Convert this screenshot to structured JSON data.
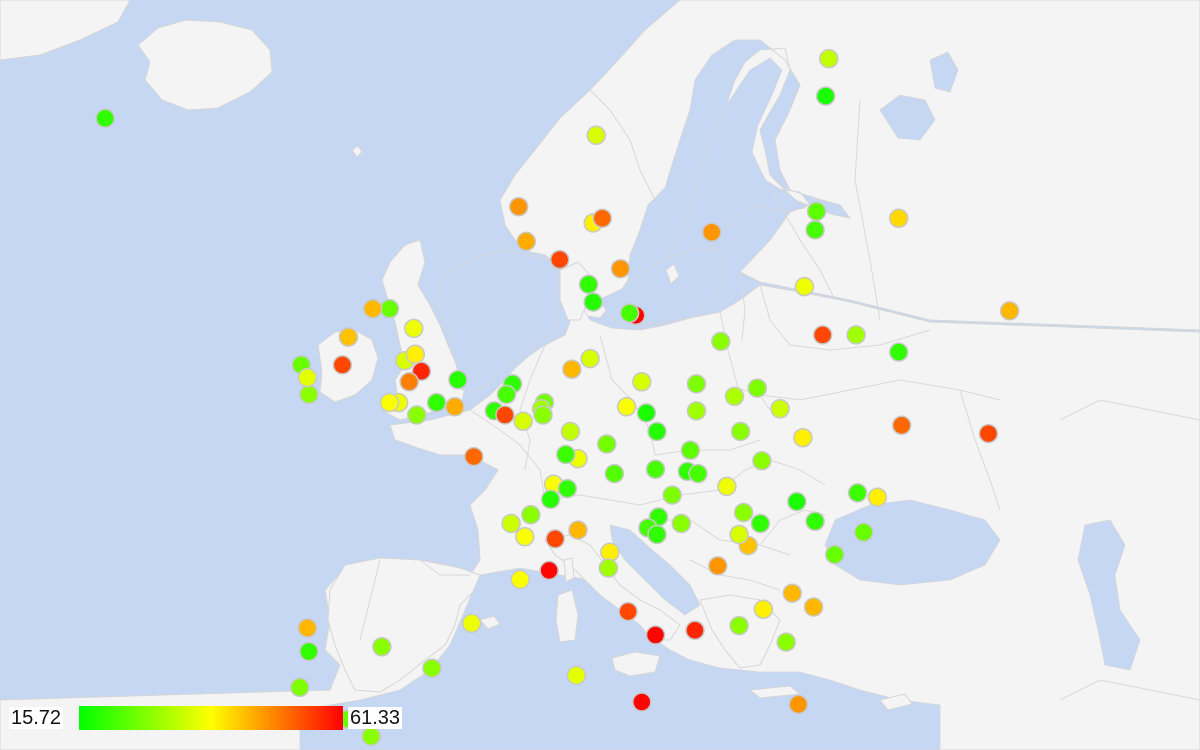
{
  "legend": {
    "min_label": "15.72",
    "max_label": "61.33",
    "min_value": 15.72,
    "max_value": 61.33,
    "colors": [
      "#00ff00",
      "#ffff00",
      "#ff0000"
    ]
  },
  "colors": {
    "water": "#c5d7f2",
    "land": "#f4f4f4",
    "border": "#d6d6d6"
  },
  "chart_data": {
    "type": "scatter",
    "color_scale": {
      "min": 15.72,
      "max": 61.33,
      "colors": [
        "#00ff00",
        "#ffff00",
        "#ff0000"
      ]
    },
    "points": [
      {
        "lon": -21.9,
        "lat": 64.1,
        "value": 20
      },
      {
        "lon": 25.7,
        "lat": 66.5,
        "value": 33
      },
      {
        "lon": 10.4,
        "lat": 63.4,
        "value": 35
      },
      {
        "lon": 5.3,
        "lat": 60.4,
        "value": 48
      },
      {
        "lon": 10.2,
        "lat": 59.7,
        "value": 40
      },
      {
        "lon": 10.8,
        "lat": 59.9,
        "value": 52
      },
      {
        "lon": 5.8,
        "lat": 58.9,
        "value": 46
      },
      {
        "lon": 8.0,
        "lat": 58.1,
        "value": 55
      },
      {
        "lon": 18.0,
        "lat": 59.3,
        "value": 48
      },
      {
        "lon": 12.0,
        "lat": 57.7,
        "value": 48
      },
      {
        "lon": 13.0,
        "lat": 55.6,
        "value": 61
      },
      {
        "lon": 12.6,
        "lat": 55.7,
        "value": 22
      },
      {
        "lon": 10.2,
        "lat": 56.2,
        "value": 19
      },
      {
        "lon": 9.9,
        "lat": 57.0,
        "value": 20
      },
      {
        "lon": 25.5,
        "lat": 65.0,
        "value": 18
      },
      {
        "lon": 24.9,
        "lat": 60.2,
        "value": 24
      },
      {
        "lon": 24.8,
        "lat": 59.4,
        "value": 22
      },
      {
        "lon": 30.3,
        "lat": 59.9,
        "value": 42
      },
      {
        "lon": 24.1,
        "lat": 56.9,
        "value": 37
      },
      {
        "lon": 25.3,
        "lat": 54.7,
        "value": 55
      },
      {
        "lon": 27.5,
        "lat": 54.7,
        "value": 30
      },
      {
        "lon": 30.3,
        "lat": 53.9,
        "value": 20
      },
      {
        "lon": 37.6,
        "lat": 55.8,
        "value": 45
      },
      {
        "lon": 36.2,
        "lat": 50.0,
        "value": 55
      },
      {
        "lon": 30.5,
        "lat": 50.4,
        "value": 52
      },
      {
        "lon": 18.6,
        "lat": 54.4,
        "value": 28
      },
      {
        "lon": 17.0,
        "lat": 52.4,
        "value": 27
      },
      {
        "lon": 21.0,
        "lat": 52.2,
        "value": 27
      },
      {
        "lon": 22.5,
        "lat": 51.2,
        "value": 34
      },
      {
        "lon": 19.5,
        "lat": 51.8,
        "value": 31
      },
      {
        "lon": 17.0,
        "lat": 51.1,
        "value": 30
      },
      {
        "lon": 19.9,
        "lat": 50.1,
        "value": 28
      },
      {
        "lon": 24.0,
        "lat": 49.8,
        "value": 40
      },
      {
        "lon": -3.2,
        "lat": 55.9,
        "value": 25
      },
      {
        "lon": -4.3,
        "lat": 55.9,
        "value": 45
      },
      {
        "lon": -5.9,
        "lat": 54.6,
        "value": 44
      },
      {
        "lon": -1.6,
        "lat": 55.0,
        "value": 37
      },
      {
        "lon": -6.3,
        "lat": 53.3,
        "value": 55
      },
      {
        "lon": -8.5,
        "lat": 51.9,
        "value": 28
      },
      {
        "lon": -9.0,
        "lat": 53.3,
        "value": 25
      },
      {
        "lon": -8.6,
        "lat": 52.7,
        "value": 36
      },
      {
        "lon": -2.2,
        "lat": 53.5,
        "value": 35
      },
      {
        "lon": -1.5,
        "lat": 53.8,
        "value": 40
      },
      {
        "lon": -1.1,
        "lat": 53.0,
        "value": 58
      },
      {
        "lon": -1.9,
        "lat": 52.5,
        "value": 50
      },
      {
        "lon": -0.1,
        "lat": 51.5,
        "value": 20
      },
      {
        "lon": 1.3,
        "lat": 52.6,
        "value": 19
      },
      {
        "lon": -2.6,
        "lat": 51.5,
        "value": 37
      },
      {
        "lon": -3.2,
        "lat": 51.5,
        "value": 38
      },
      {
        "lon": 1.1,
        "lat": 51.3,
        "value": 46
      },
      {
        "lon": -1.4,
        "lat": 50.9,
        "value": 28
      },
      {
        "lon": 4.9,
        "lat": 52.4,
        "value": 20
      },
      {
        "lon": 4.5,
        "lat": 51.9,
        "value": 22
      },
      {
        "lon": 3.7,
        "lat": 51.1,
        "value": 20
      },
      {
        "lon": 4.4,
        "lat": 50.9,
        "value": 55
      },
      {
        "lon": 5.6,
        "lat": 50.6,
        "value": 35
      },
      {
        "lon": 8.8,
        "lat": 53.1,
        "value": 45
      },
      {
        "lon": 10.0,
        "lat": 53.6,
        "value": 35
      },
      {
        "lon": 13.4,
        "lat": 52.5,
        "value": 35
      },
      {
        "lon": 7.0,
        "lat": 51.5,
        "value": 26
      },
      {
        "lon": 6.8,
        "lat": 51.2,
        "value": 30
      },
      {
        "lon": 6.9,
        "lat": 50.9,
        "value": 28
      },
      {
        "lon": 8.7,
        "lat": 50.1,
        "value": 33
      },
      {
        "lon": 12.4,
        "lat": 51.3,
        "value": 38
      },
      {
        "lon": 13.7,
        "lat": 51.0,
        "value": 18
      },
      {
        "lon": 9.2,
        "lat": 48.8,
        "value": 37
      },
      {
        "lon": 8.4,
        "lat": 49.0,
        "value": 21
      },
      {
        "lon": 11.6,
        "lat": 48.1,
        "value": 23
      },
      {
        "lon": 11.1,
        "lat": 49.5,
        "value": 26
      },
      {
        "lon": 2.35,
        "lat": 48.9,
        "value": 52
      },
      {
        "lon": 7.6,
        "lat": 47.6,
        "value": 38
      },
      {
        "lon": 8.5,
        "lat": 47.4,
        "value": 20
      },
      {
        "lon": 7.4,
        "lat": 46.9,
        "value": 19
      },
      {
        "lon": 6.1,
        "lat": 46.2,
        "value": 28
      },
      {
        "lon": 4.8,
        "lat": 45.8,
        "value": 34
      },
      {
        "lon": 5.7,
        "lat": 45.2,
        "value": 38
      },
      {
        "lon": 7.7,
        "lat": 45.1,
        "value": 55
      },
      {
        "lon": 9.2,
        "lat": 45.5,
        "value": 45
      },
      {
        "lon": 11.3,
        "lat": 44.5,
        "value": 40
      },
      {
        "lon": 11.2,
        "lat": 43.8,
        "value": 30
      },
      {
        "lon": 12.5,
        "lat": 41.9,
        "value": 55
      },
      {
        "lon": 14.3,
        "lat": 40.9,
        "value": 61
      },
      {
        "lon": 16.9,
        "lat": 41.1,
        "value": 58
      },
      {
        "lon": 13.4,
        "lat": 38.1,
        "value": 61
      },
      {
        "lon": 9.1,
        "lat": 39.2,
        "value": 36
      },
      {
        "lon": 7.3,
        "lat": 43.7,
        "value": 61
      },
      {
        "lon": 5.4,
        "lat": 43.3,
        "value": 38
      },
      {
        "lon": 2.2,
        "lat": 41.4,
        "value": 37
      },
      {
        "lon": -3.7,
        "lat": 40.4,
        "value": 28
      },
      {
        "lon": -0.4,
        "lat": 39.5,
        "value": 28
      },
      {
        "lon": -8.6,
        "lat": 41.2,
        "value": 45
      },
      {
        "lon": -9.1,
        "lat": 38.7,
        "value": 27
      },
      {
        "lon": -5.9,
        "lat": 37.4,
        "value": 25
      },
      {
        "lon": -4.4,
        "lat": 36.7,
        "value": 28
      },
      {
        "lon": -8.5,
        "lat": 40.2,
        "value": 20
      },
      {
        "lon": 16.4,
        "lat": 48.2,
        "value": 20
      },
      {
        "lon": 14.3,
        "lat": 48.3,
        "value": 22
      },
      {
        "lon": 15.4,
        "lat": 47.1,
        "value": 27
      },
      {
        "lon": 14.5,
        "lat": 46.1,
        "value": 20
      },
      {
        "lon": 13.8,
        "lat": 45.6,
        "value": 22
      },
      {
        "lon": 14.4,
        "lat": 45.3,
        "value": 20
      },
      {
        "lon": 16.0,
        "lat": 45.8,
        "value": 28
      },
      {
        "lon": 14.4,
        "lat": 50.1,
        "value": 19
      },
      {
        "lon": 16.6,
        "lat": 49.2,
        "value": 24
      },
      {
        "lon": 17.1,
        "lat": 48.1,
        "value": 22
      },
      {
        "lon": 21.3,
        "lat": 48.7,
        "value": 28
      },
      {
        "lon": 19.0,
        "lat": 47.5,
        "value": 37
      },
      {
        "lon": 20.1,
        "lat": 46.3,
        "value": 28
      },
      {
        "lon": 20.4,
        "lat": 44.8,
        "value": 44
      },
      {
        "lon": 18.4,
        "lat": 43.9,
        "value": 48
      },
      {
        "lon": 19.8,
        "lat": 45.3,
        "value": 35
      },
      {
        "lon": 21.2,
        "lat": 45.8,
        "value": 20
      },
      {
        "lon": 23.6,
        "lat": 46.8,
        "value": 18
      },
      {
        "lon": 26.1,
        "lat": 44.4,
        "value": 25
      },
      {
        "lon": 24.8,
        "lat": 45.9,
        "value": 20
      },
      {
        "lon": 27.6,
        "lat": 47.2,
        "value": 21
      },
      {
        "lon": 28.9,
        "lat": 47.0,
        "value": 40
      },
      {
        "lon": 28.0,
        "lat": 45.4,
        "value": 25
      },
      {
        "lon": 23.3,
        "lat": 42.7,
        "value": 45
      },
      {
        "lon": 24.7,
        "lat": 42.1,
        "value": 45
      },
      {
        "lon": 21.4,
        "lat": 42.0,
        "value": 40
      },
      {
        "lon": 19.8,
        "lat": 41.3,
        "value": 28
      },
      {
        "lon": 22.9,
        "lat": 40.6,
        "value": 28
      },
      {
        "lon": 23.7,
        "lat": 38.0,
        "value": 48
      }
    ]
  }
}
